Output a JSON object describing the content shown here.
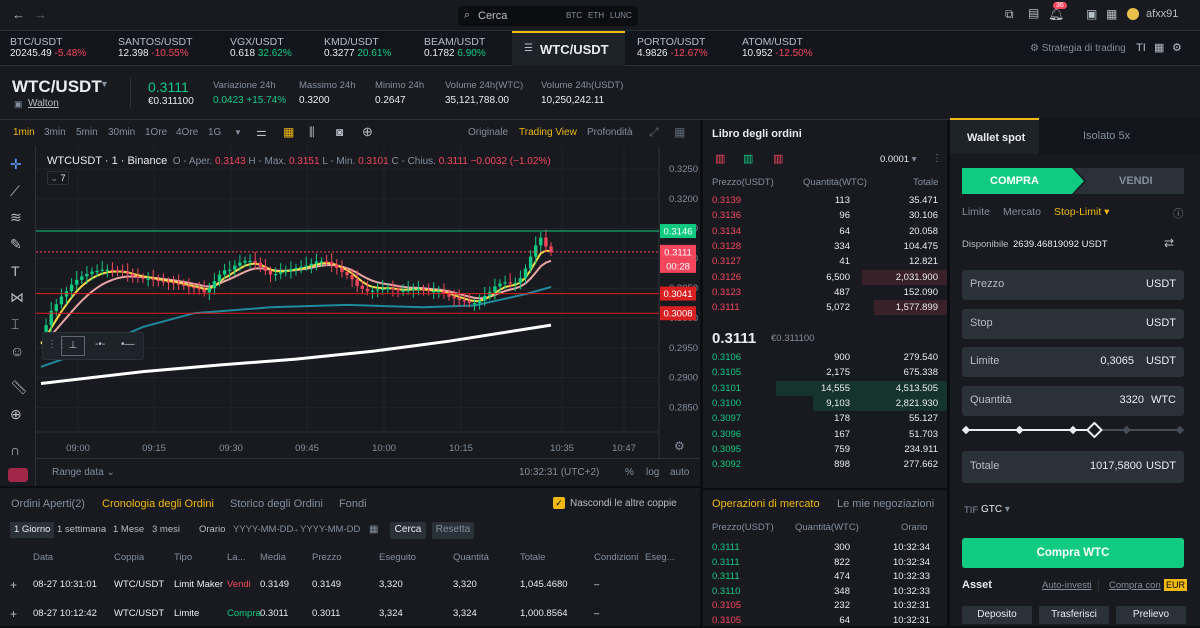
{
  "topbar": {
    "back": "←",
    "forward": "→",
    "search_placeholder": "Cerca",
    "search_tags": [
      "BTC",
      "ETH",
      "LUNC"
    ],
    "notif_count": "36",
    "username": "afxx91"
  },
  "tickers": [
    {
      "name": "BTC/USDT",
      "price": "20245.49",
      "change": "-5.48%",
      "up": false
    },
    {
      "name": "SANTOS/USDT",
      "price": "12.398",
      "change": "-10.55%",
      "up": false
    },
    {
      "name": "VGX/USDT",
      "price": "0.618",
      "change": "32.62%",
      "up": true
    },
    {
      "name": "KMD/USDT",
      "price": "0.3277",
      "change": "20.61%",
      "up": true
    },
    {
      "name": "BEAM/USDT",
      "price": "0.1782",
      "change": "6.90%",
      "up": true
    },
    {
      "name": "WTC/USDT",
      "price": "",
      "change": "",
      "up": true
    },
    {
      "name": "PORTO/USDT",
      "price": "4.9826",
      "change": "-12.67%",
      "up": false
    },
    {
      "name": "ATOM/USDT",
      "price": "10.952",
      "change": "-12.50%",
      "up": false
    }
  ],
  "strategy": "Strategia di trading",
  "pair": {
    "symbol": "WTC/USDT",
    "link": "Walton",
    "price": "0.3111",
    "price_eur": "€0.311100",
    "stats": [
      {
        "label": "Variazione 24h",
        "value": "0.0423 +15.74%",
        "green": true
      },
      {
        "label": "Massimo 24h",
        "value": "0.3200"
      },
      {
        "label": "Minimo 24h",
        "value": "0.2647"
      },
      {
        "label": "Volume 24h(WTC)",
        "value": "35,121,788.00"
      },
      {
        "label": "Volume 24h(USDT)",
        "value": "10,250,242.11"
      }
    ]
  },
  "chart_toolbar": {
    "intervals": [
      "1min",
      "3min",
      "5min",
      "30min",
      "1Ore",
      "4Ore",
      "1G"
    ],
    "views": [
      "Originale",
      "Trading View",
      "Profondità"
    ]
  },
  "chart_info": {
    "title": "WTCUSDT · 1 · Binance",
    "o_label": "O - Aper.",
    "o": "0.3143",
    "h_label": "H - Max.",
    "h": "0.3151",
    "l_label": "L - Min.",
    "l": "0.3101",
    "c_label": "C - Chius.",
    "c": "0.3111",
    "chg": "−0.0032 (−1.02%)",
    "indicators": "7"
  },
  "chart_data": {
    "type": "candlestick",
    "symbol": "WTCUSDT",
    "interval": "1",
    "exchange": "Binance",
    "y_ticks": [
      "0.3250",
      "0.3200",
      "0.3150",
      "0.3100",
      "0.3050",
      "0.3000",
      "0.2950",
      "0.2900",
      "0.2850"
    ],
    "x_ticks": [
      "09:00",
      "09:15",
      "09:30",
      "09:45",
      "10:00",
      "10:15",
      "10:35",
      "10:47"
    ],
    "ylim": [
      0.2822,
      0.3272
    ],
    "price_levels": [
      {
        "value": "0.3146",
        "color": "#0ecb81"
      },
      {
        "value": "0.3111",
        "color": "#f6465d"
      },
      {
        "value": "00:28",
        "color": "#f6465d",
        "tag": true
      },
      {
        "value": "0.3041",
        "color": "#d91f1f"
      },
      {
        "value": "0.3008",
        "color": "#d91f1f"
      }
    ],
    "closes": [
      0.2957,
      0.2988,
      0.3012,
      0.3023,
      0.3036,
      0.3045,
      0.3056,
      0.3064,
      0.307,
      0.3074,
      0.3078,
      0.3079,
      0.3081,
      0.3081,
      0.308,
      0.3079,
      0.3077,
      0.3074,
      0.307,
      0.3068,
      0.3066,
      0.3066,
      0.3064,
      0.3062,
      0.3061,
      0.306,
      0.3058,
      0.3056,
      0.3054,
      0.3052,
      0.305,
      0.3048,
      0.3043,
      0.305,
      0.3062,
      0.3073,
      0.308,
      0.3081,
      0.3088,
      0.3093,
      0.3096,
      0.3096,
      0.3093,
      0.3086,
      0.3079,
      0.3073,
      0.3074,
      0.3077,
      0.3079,
      0.3082,
      0.3084,
      0.3086,
      0.3088,
      0.3091,
      0.3095,
      0.3095,
      0.3094,
      0.309,
      0.3084,
      0.3077,
      0.3072,
      0.3065,
      0.3054,
      0.3049,
      0.3045,
      0.3046,
      0.3048,
      0.3049,
      0.305,
      0.3049,
      0.3046,
      0.3046,
      0.3047,
      0.3049,
      0.3049,
      0.3047,
      0.3045,
      0.3045,
      0.3045,
      0.3041,
      0.3036,
      0.3033,
      0.303,
      0.3028,
      0.3025,
      0.3025,
      0.3029,
      0.3037,
      0.3044,
      0.3053,
      0.3058,
      0.306,
      0.3058,
      0.3059,
      0.3067,
      0.3083,
      0.3103,
      0.3122,
      0.3135,
      0.312,
      0.3111
    ],
    "ma_white": [
      [
        0,
        0.289
      ],
      [
        0.2,
        0.291
      ],
      [
        0.35,
        0.2921
      ],
      [
        0.5,
        0.2931
      ],
      [
        0.65,
        0.2944
      ],
      [
        0.8,
        0.2961
      ],
      [
        1,
        0.2988
      ]
    ],
    "ma_teal": [
      [
        0,
        0.2918
      ],
      [
        0.1,
        0.2948
      ],
      [
        0.2,
        0.2985
      ],
      [
        0.3,
        0.3008
      ],
      [
        0.45,
        0.3018
      ],
      [
        0.6,
        0.3022
      ],
      [
        0.75,
        0.3018
      ],
      [
        0.85,
        0.3021
      ],
      [
        0.95,
        0.304
      ],
      [
        1,
        0.3052
      ]
    ]
  },
  "chart_bottom": {
    "range": "Range data",
    "time": "10:32:31 (UTC+2)",
    "pct": "%",
    "log": "log",
    "auto": "auto"
  },
  "book": {
    "title": "Libro degli ordini",
    "precision": "0.0001",
    "headers": [
      "Prezzo(USDT)",
      "Quantità(WTC)",
      "Totale"
    ],
    "asks": [
      [
        "0.3139",
        "113",
        "35.471",
        0
      ],
      [
        "0.3136",
        "96",
        "30.106",
        0
      ],
      [
        "0.3134",
        "64",
        "20.058",
        0
      ],
      [
        "0.3128",
        "334",
        "104.475",
        0
      ],
      [
        "0.3127",
        "41",
        "12.821",
        0
      ],
      [
        "0.3126",
        "6,500",
        "2,031.900",
        0.35
      ],
      [
        "0.3123",
        "487",
        "152.090",
        0
      ],
      [
        "0.3111",
        "5,072",
        "1,577.899",
        0.3
      ]
    ],
    "last": "0.3111",
    "last_eur": "€0.311100",
    "bids": [
      [
        "0.3106",
        "900",
        "279.540",
        0
      ],
      [
        "0.3105",
        "2,175",
        "675.338",
        0
      ],
      [
        "0.3101",
        "14,555",
        "4,513.505",
        0.7
      ],
      [
        "0.3100",
        "9,103",
        "2,821.930",
        0.55
      ],
      [
        "0.3097",
        "178",
        "55.127",
        0
      ],
      [
        "0.3096",
        "167",
        "51.703",
        0
      ],
      [
        "0.3095",
        "759",
        "234.911",
        0
      ],
      [
        "0.3092",
        "898",
        "277.662",
        0
      ]
    ]
  },
  "trades": {
    "tab1": "Operazioni di mercato",
    "tab2": "Le mie negoziazioni",
    "headers": [
      "Prezzo(USDT)",
      "Quantità(WTC)",
      "Orario"
    ],
    "rows": [
      [
        "0.3111",
        "300",
        "10:32:34",
        true
      ],
      [
        "0.3111",
        "822",
        "10:32:34",
        true
      ],
      [
        "0.3111",
        "474",
        "10:32:33",
        true
      ],
      [
        "0.3110",
        "348",
        "10:32:33",
        true
      ],
      [
        "0.3105",
        "232",
        "10:32:31",
        false
      ],
      [
        "0.3105",
        "64",
        "10:32:31",
        false
      ]
    ]
  },
  "orders": {
    "tabs": [
      "Ordini Aperti(2)",
      "Cronologia degli Ordini",
      "Storico degli Ordini",
      "Fondi"
    ],
    "hide": "Nascondi le altre coppie",
    "periods": [
      "1 Giorno",
      "1 settimana",
      "1 Mese",
      "3 mesi"
    ],
    "orario": "Orario",
    "date_from": "YYYY-MM-DD",
    "date_to": "YYYY-MM-DD",
    "search_btn": "Cerca",
    "reset_btn": "Resetta",
    "headers": [
      "Data",
      "Coppia",
      "Tipo",
      "La...",
      "Media",
      "Prezzo",
      "Eseguito",
      "Quantità",
      "Totale",
      "Condizioni",
      "Eseg..."
    ],
    "rows": [
      [
        "08-27 10:31:01",
        "WTC/USDT",
        "Limit Maker",
        "Vendi",
        "0.3149",
        "0.3149",
        "3,320",
        "3,320",
        "1,045.4680",
        "–",
        false
      ],
      [
        "08-27 10:12:42",
        "WTC/USDT",
        "Limite",
        "Compra",
        "0.3011",
        "0.3011",
        "3,324",
        "3,324",
        "1,000.8564",
        "–",
        true
      ]
    ]
  },
  "wallet": {
    "tab1": "Wallet spot",
    "tab2": "Isolato 5x",
    "buy": "COMPRA",
    "sell": "VENDI",
    "types": [
      "Limite",
      "Mercato",
      "Stop-Limit"
    ],
    "available_label": "Disponibile",
    "available": "2639.46819092 USDT",
    "price_label": "Prezzo",
    "price_unit": "USDT",
    "stop_label": "Stop",
    "stop_unit": "USDT",
    "limit_label": "Limite",
    "limit_value": "0,3065",
    "limit_unit": "USDT",
    "qty_label": "Quantità",
    "qty_value": "3320",
    "qty_unit": "WTC",
    "slider_pct": 0.6,
    "total_label": "Totale",
    "total_value": "1017,5800",
    "total_unit": "USDT",
    "tif_label": "TIF",
    "tif_value": "GTC",
    "buy_button": "Compra WTC",
    "asset": "Asset",
    "auto_invest": "Auto-investi",
    "buy_with": "Compra con",
    "eur": "EUR",
    "deposit": "Deposito",
    "transfer": "Trasferisci",
    "withdraw": "Prelievo"
  }
}
